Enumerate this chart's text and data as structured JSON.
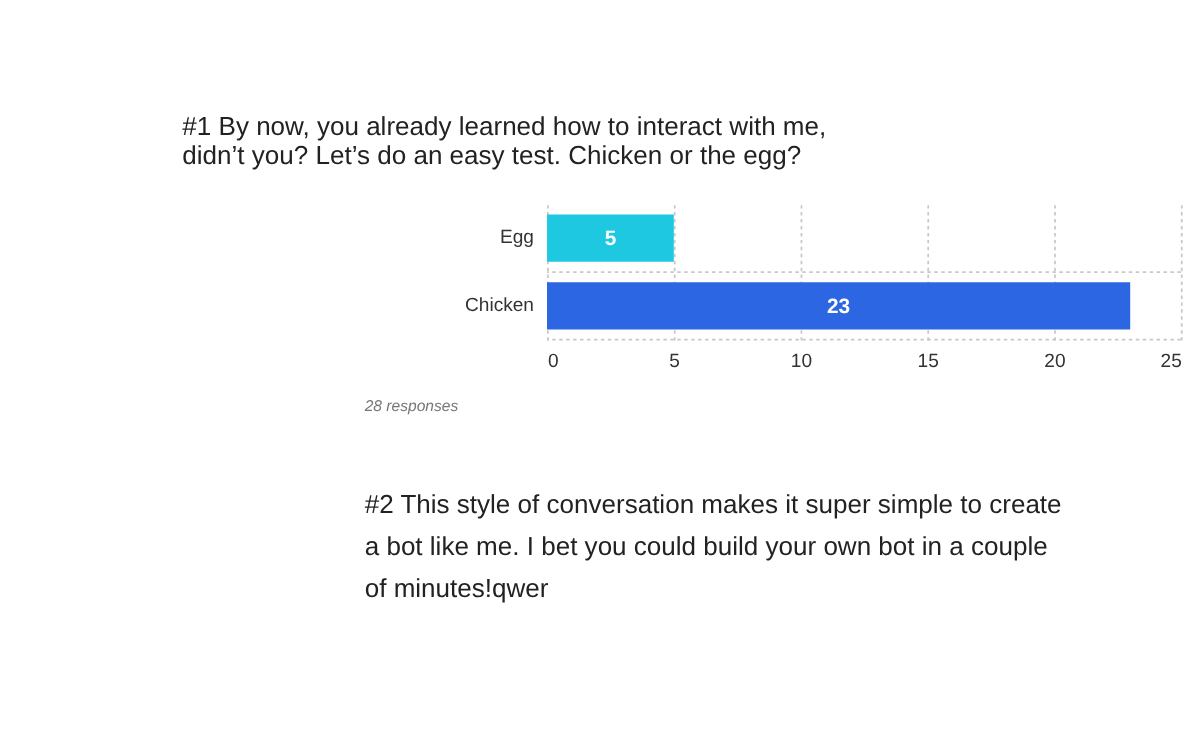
{
  "chart_data": {
    "type": "bar",
    "orientation": "horizontal",
    "title": "#1  By now, you already learned how to interact with me, didn’t you? Let’s do an easy test. Chicken or the egg?",
    "categories": [
      "Egg",
      "Chicken"
    ],
    "values": [
      5,
      23
    ],
    "colors": [
      "#1ec8e1",
      "#2d66e3"
    ],
    "xlim": [
      0,
      25
    ],
    "xticks": [
      0,
      5,
      10,
      15,
      20,
      25
    ],
    "grid": true,
    "data_labels": true,
    "annotations": [
      "28 responses",
      "#2  This style of conversation makes it super simple to create a bot like me. I bet you could build your own bot in a couple of minutes!qwer"
    ]
  }
}
